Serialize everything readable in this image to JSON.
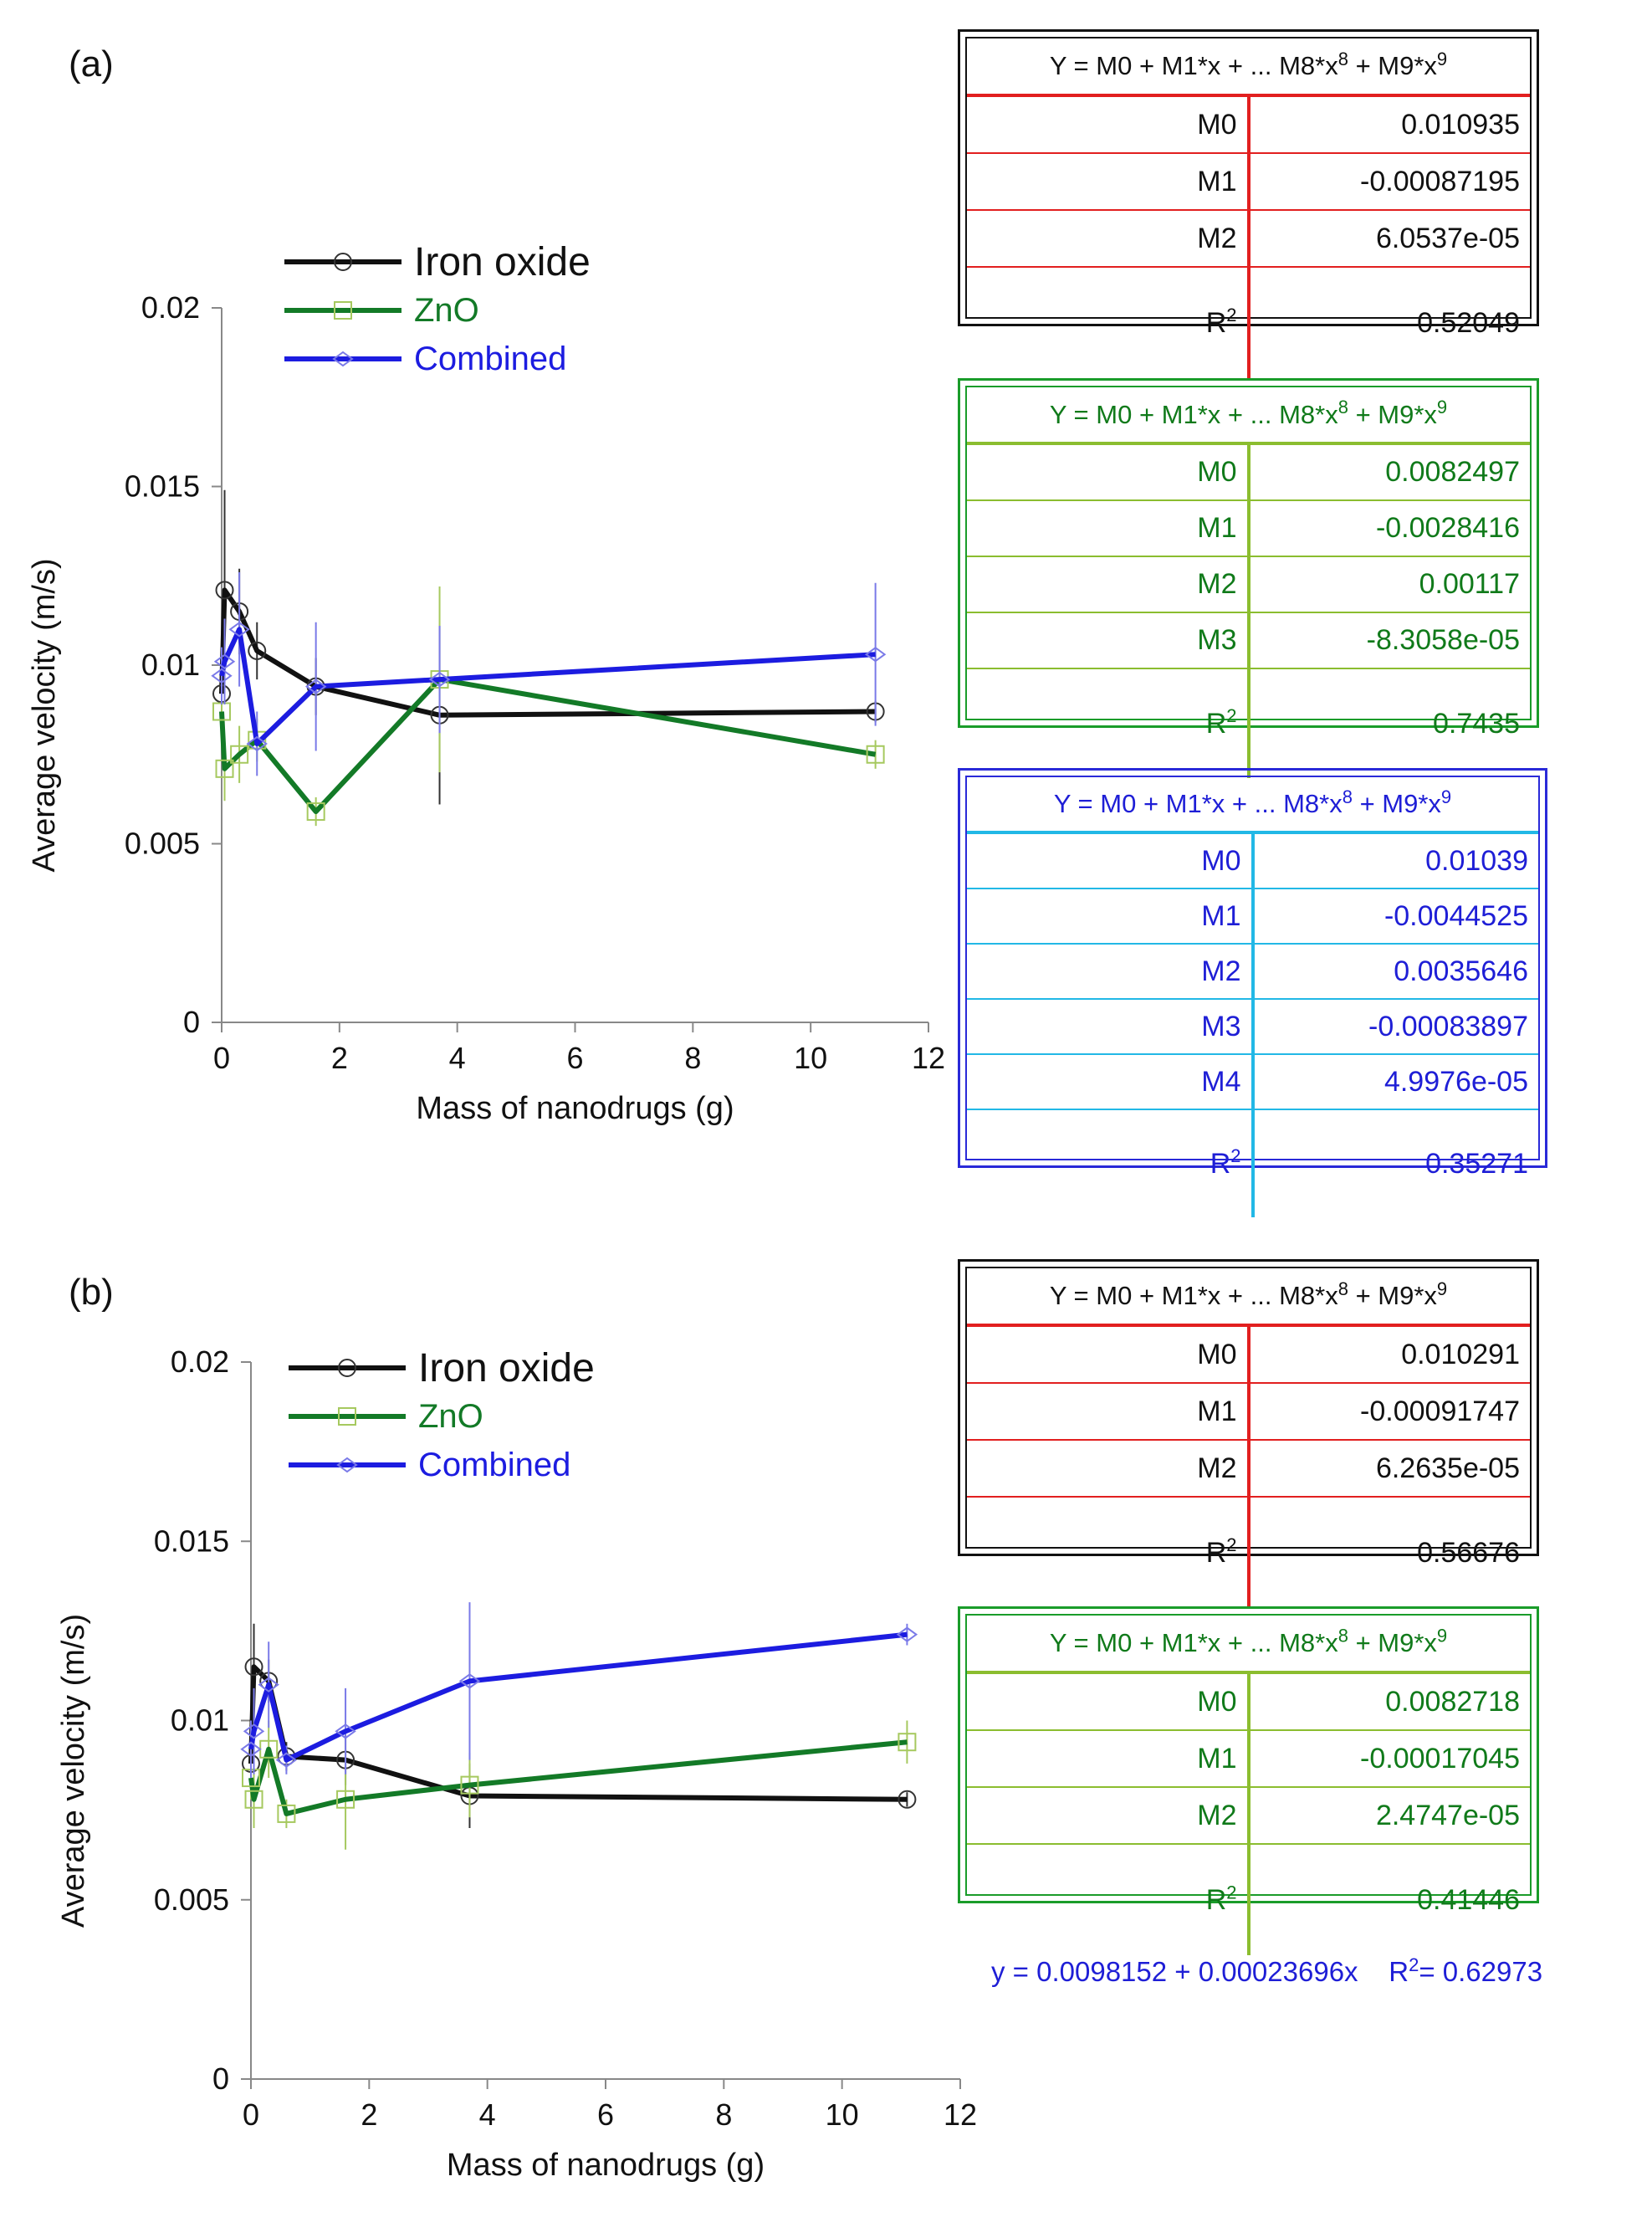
{
  "colors": {
    "iron": "#111111",
    "zno": "#137a27",
    "combined": "#1c1ce0",
    "iron_bar": "#333333",
    "zno_bar": "#a6c95f",
    "combined_bar": "#7a7ae8",
    "iron_rule": "#e21f1f",
    "zno_rule": "#8bbd2f",
    "combined_rule": "#22b8e6"
  },
  "chart_data": [
    {
      "panel": "(a)",
      "type": "line",
      "xlabel": "Mass of nanodrugs (g)",
      "ylabel": "Average velocity (m/s)",
      "xlim": [
        0,
        12
      ],
      "ylim": [
        0,
        0.02
      ],
      "xticks": [
        "0",
        "2",
        "4",
        "6",
        "8",
        "10",
        "12"
      ],
      "yticks": [
        "0",
        "0.005",
        "0.01",
        "0.015",
        "0.02"
      ],
      "legend": [
        "Iron oxide",
        "ZnO",
        "Combined"
      ],
      "series": [
        {
          "name": "Iron oxide",
          "key": "iron",
          "x": [
            0,
            0.05,
            0.3,
            0.6,
            1.6,
            3.7,
            11.1
          ],
          "y": [
            0.0092,
            0.0121,
            0.0115,
            0.0104,
            0.0094,
            0.0086,
            0.0087
          ],
          "err": [
            0.0008,
            0.0028,
            0.0012,
            0.0008,
            0.0008,
            0.0025,
            0.0003
          ]
        },
        {
          "name": "ZnO",
          "key": "zno",
          "x": [
            0,
            0.05,
            0.3,
            0.6,
            1.6,
            3.7,
            11.1
          ],
          "y": [
            0.0087,
            0.0071,
            0.0075,
            0.0079,
            0.0059,
            0.0096,
            0.0075
          ],
          "err": [
            0.0006,
            0.0009,
            0.0008,
            0.0006,
            0.0004,
            0.0026,
            0.0004
          ]
        },
        {
          "name": "Combined",
          "key": "combined",
          "x": [
            0,
            0.05,
            0.3,
            0.6,
            1.6,
            3.7,
            11.1
          ],
          "y": [
            0.0097,
            0.0101,
            0.011,
            0.0078,
            0.0094,
            0.0096,
            0.0103
          ],
          "err": [
            0.0008,
            0.0012,
            0.0016,
            0.0009,
            0.0018,
            0.0015,
            0.002
          ]
        }
      ]
    },
    {
      "panel": "(b)",
      "type": "line",
      "xlabel": "Mass of nanodrugs (g)",
      "ylabel": "Average velocity (m/s)",
      "xlim": [
        0,
        12
      ],
      "ylim": [
        0,
        0.02
      ],
      "xticks": [
        "0",
        "2",
        "4",
        "6",
        "8",
        "10",
        "12"
      ],
      "yticks": [
        "0",
        "0.005",
        "0.01",
        "0.015",
        "0.02"
      ],
      "legend": [
        "Iron oxide",
        "ZnO",
        "Combined"
      ],
      "series": [
        {
          "name": "Iron oxide",
          "key": "iron",
          "x": [
            0,
            0.05,
            0.3,
            0.6,
            1.6,
            3.7,
            11.1
          ],
          "y": [
            0.0088,
            0.0115,
            0.0111,
            0.009,
            0.0089,
            0.0079,
            0.0078
          ],
          "err": [
            0.0006,
            0.0012,
            0.0006,
            0.0004,
            0.0007,
            0.0009,
            0.0002
          ]
        },
        {
          "name": "ZnO",
          "key": "zno",
          "x": [
            0,
            0.05,
            0.3,
            0.6,
            1.6,
            3.7,
            11.1
          ],
          "y": [
            0.0084,
            0.0078,
            0.0092,
            0.0074,
            0.0078,
            0.0082,
            0.0094
          ],
          "err": [
            0.0006,
            0.0008,
            0.0008,
            0.0004,
            0.0014,
            0.0009,
            0.0006
          ]
        },
        {
          "name": "Combined",
          "key": "combined",
          "x": [
            0,
            0.05,
            0.3,
            0.6,
            1.6,
            3.7,
            11.1
          ],
          "y": [
            0.0092,
            0.0097,
            0.011,
            0.0089,
            0.0097,
            0.0111,
            0.0124
          ],
          "err": [
            0.0008,
            0.0012,
            0.0012,
            0.0004,
            0.0012,
            0.0022,
            0.0003
          ]
        }
      ]
    }
  ],
  "fit_header": "Y = M0 + M1*x + ... M8*x",
  "fit_header_exp8": "8",
  "fit_header_mid": " + M9*x",
  "fit_header_exp9": "9",
  "r2_label": "R",
  "r2_exp": "2",
  "fit_tables": {
    "a_iron": {
      "rows": [
        {
          "name": "M0",
          "value": "0.010935"
        },
        {
          "name": "M1",
          "value": "-0.00087195"
        },
        {
          "name": "M2",
          "value": "6.0537e-05"
        }
      ],
      "r2": "0.52049"
    },
    "a_zno": {
      "rows": [
        {
          "name": "M0",
          "value": "0.0082497"
        },
        {
          "name": "M1",
          "value": "-0.0028416"
        },
        {
          "name": "M2",
          "value": "0.00117"
        },
        {
          "name": "M3",
          "value": "-8.3058e-05"
        }
      ],
      "r2": "0.7435"
    },
    "a_combined": {
      "rows": [
        {
          "name": "M0",
          "value": "0.01039"
        },
        {
          "name": "M1",
          "value": "-0.0044525"
        },
        {
          "name": "M2",
          "value": "0.0035646"
        },
        {
          "name": "M3",
          "value": "-0.00083897"
        },
        {
          "name": "M4",
          "value": "4.9976e-05"
        }
      ],
      "r2": "0.35271"
    },
    "b_iron": {
      "rows": [
        {
          "name": "M0",
          "value": "0.010291"
        },
        {
          "name": "M1",
          "value": "-0.00091747"
        },
        {
          "name": "M2",
          "value": "6.2635e-05"
        }
      ],
      "r2": "0.56676"
    },
    "b_zno": {
      "rows": [
        {
          "name": "M0",
          "value": "0.0082718"
        },
        {
          "name": "M1",
          "value": "-0.00017045"
        },
        {
          "name": "M2",
          "value": "2.4747e-05"
        }
      ],
      "r2": "0.41446"
    }
  },
  "linear_fit": {
    "eq": "y = 0.0098152 + 0.00023696x",
    "r": "R",
    "r_exp": "2",
    "r_value": "= 0.62973"
  }
}
